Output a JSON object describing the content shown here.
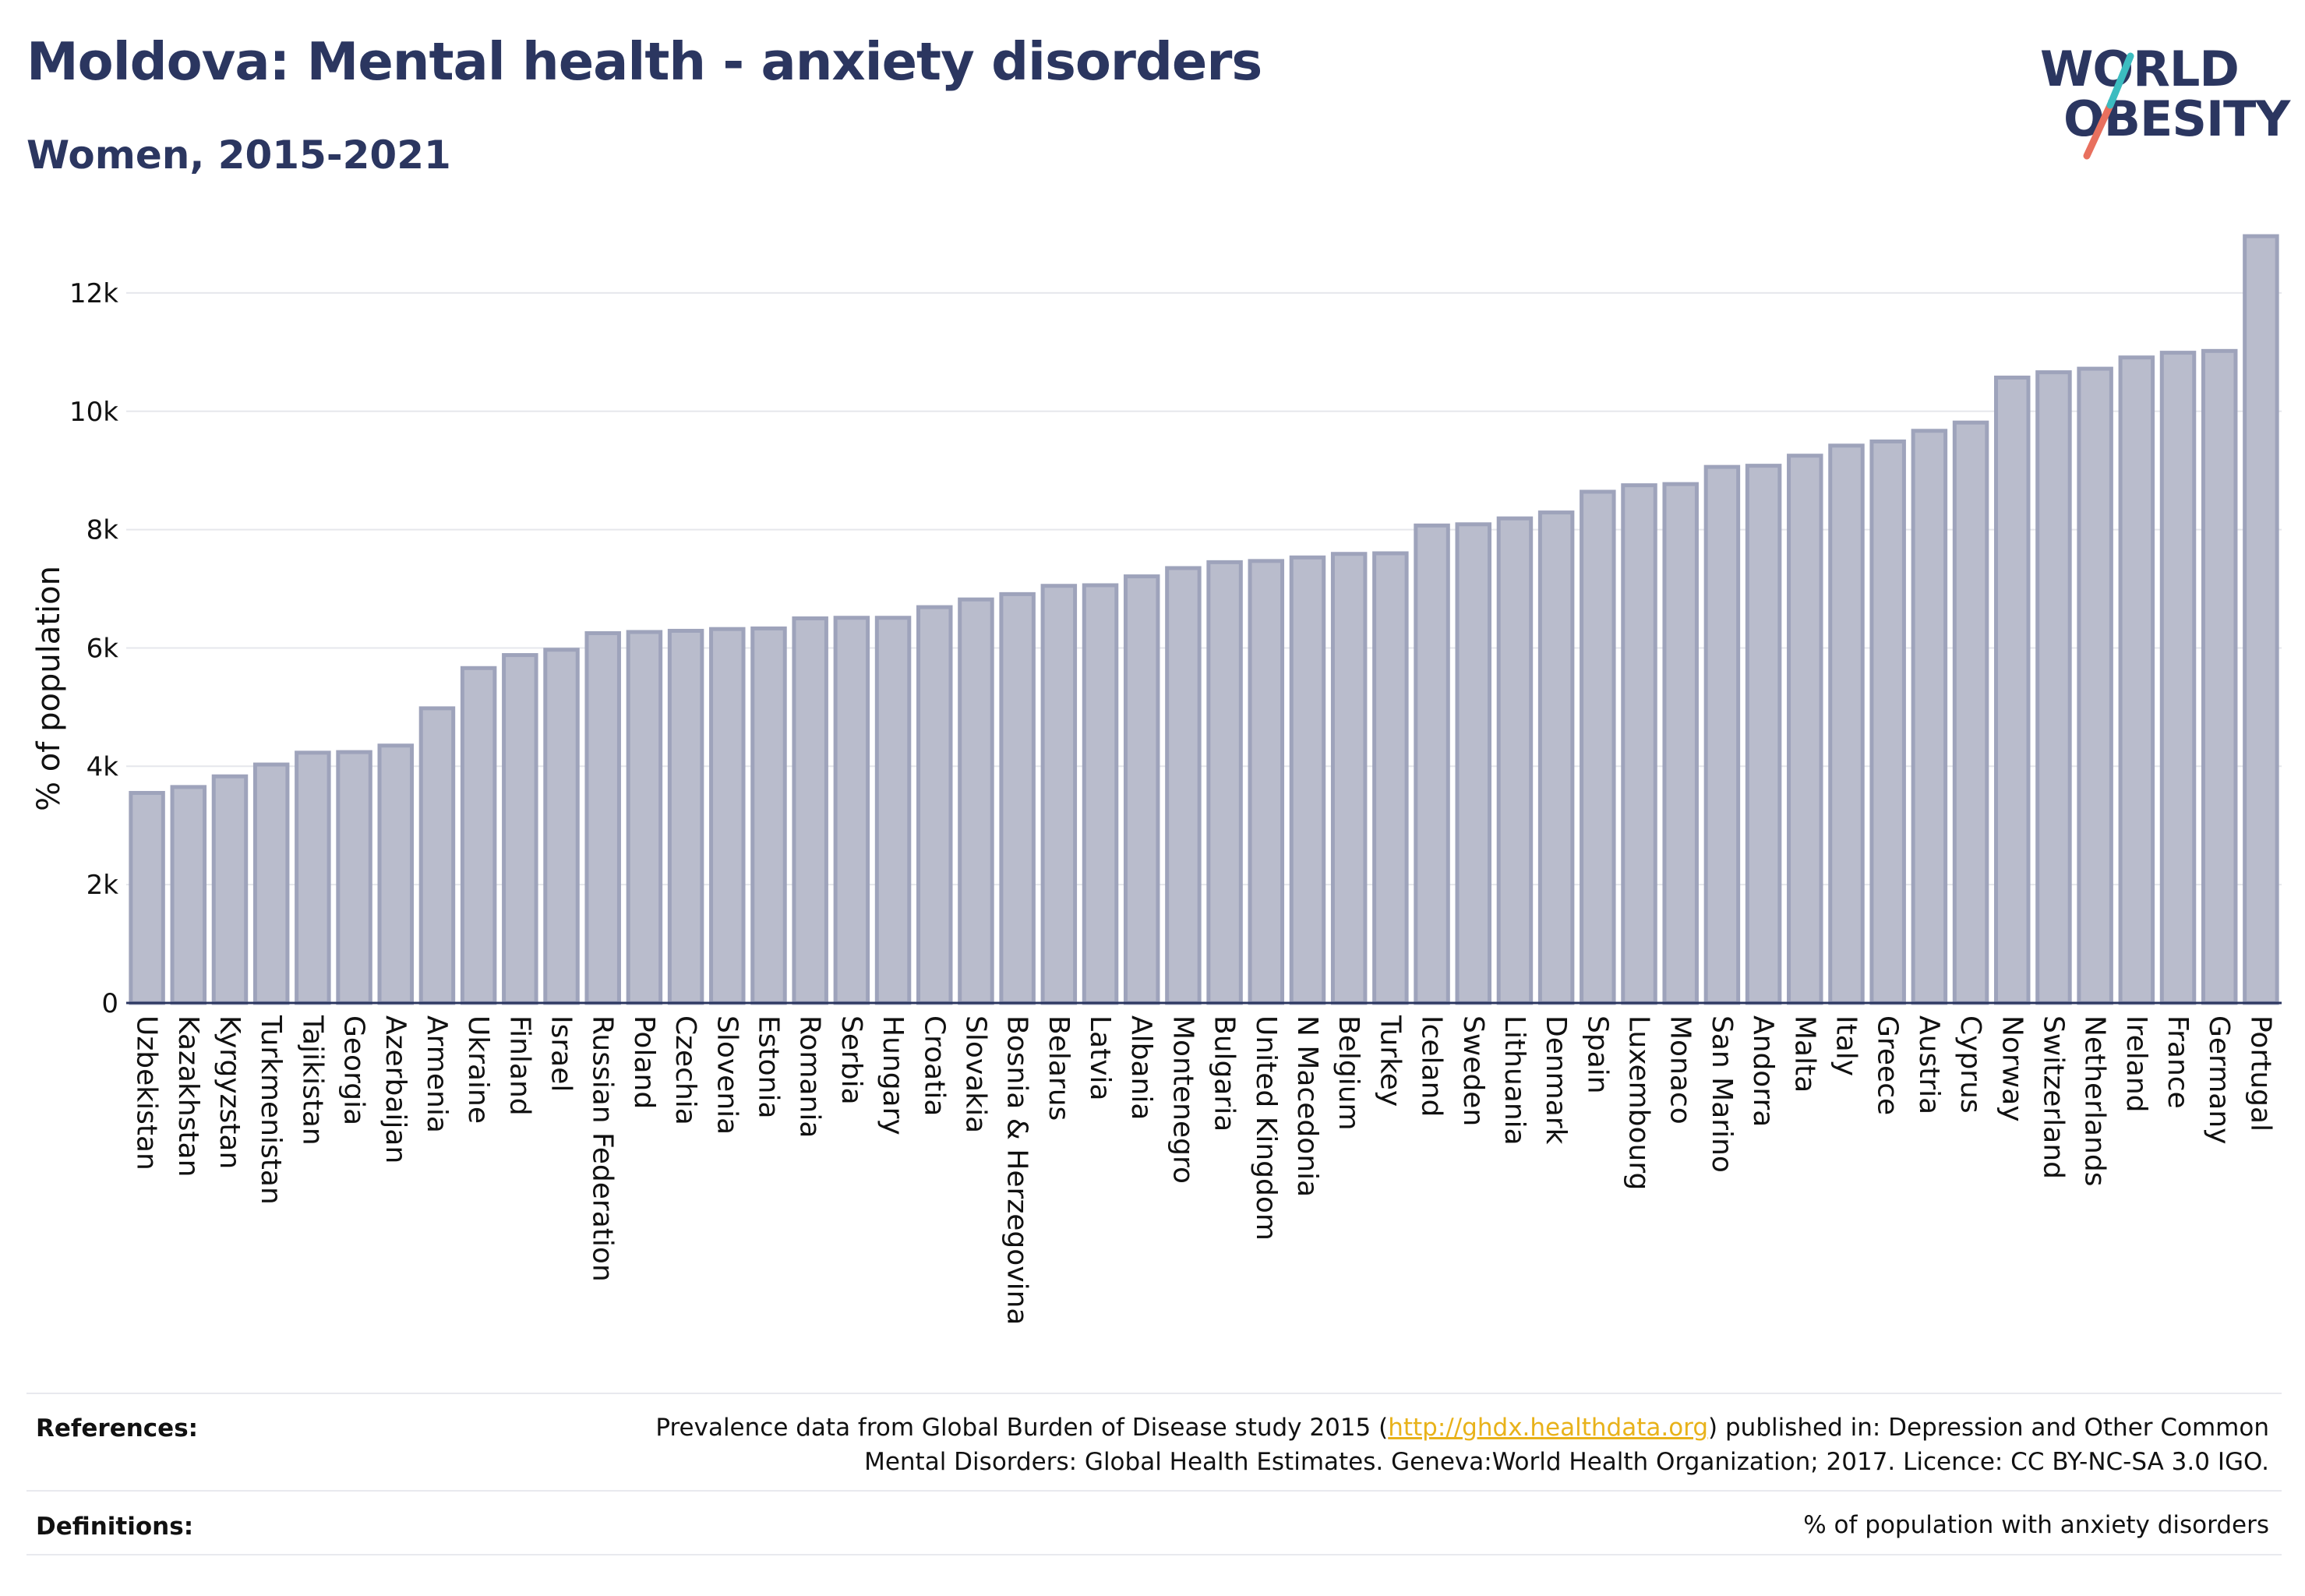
{
  "header": {
    "title": "Moldova: Mental health - anxiety disorders",
    "subtitle": "Women, 2015-2021"
  },
  "logo": {
    "line1": "WORLD",
    "line2": "OBESITY"
  },
  "chart_data": {
    "type": "bar",
    "title": "Moldova: Mental health - anxiety disorders",
    "subtitle": "Women, 2015-2021",
    "xlabel": "",
    "ylabel": "% of population",
    "ylim": [
      0,
      13000
    ],
    "yticks": [
      0,
      2000,
      4000,
      6000,
      8000,
      10000,
      12000
    ],
    "ytick_labels": [
      "0",
      "2k",
      "4k",
      "6k",
      "8k",
      "10k",
      "12k"
    ],
    "grid": true,
    "bar_color": "#b9bccc",
    "bar_edge_color": "#9ea3bb",
    "categories": [
      "Uzbekistan",
      "Kazakhstan",
      "Kyrgyzstan",
      "Turkmenistan",
      "Tajikistan",
      "Georgia",
      "Azerbaijan",
      "Armenia",
      "Ukraine",
      "Finland",
      "Israel",
      "Russian Federation",
      "Poland",
      "Czechia",
      "Slovenia",
      "Estonia",
      "Romania",
      "Serbia",
      "Hungary",
      "Croatia",
      "Slovakia",
      "Bosnia & Herzegovina",
      "Belarus",
      "Latvia",
      "Albania",
      "Montenegro",
      "Bulgaria",
      "United Kingdom",
      "N Macedonia",
      "Belgium",
      "Turkey",
      "Iceland",
      "Sweden",
      "Lithuania",
      "Denmark",
      "Spain",
      "Luxembourg",
      "Monaco",
      "San Marino",
      "Andorra",
      "Malta",
      "Italy",
      "Greece",
      "Austria",
      "Cyprus",
      "Norway",
      "Switzerland",
      "Netherlands",
      "Ireland",
      "France",
      "Germany",
      "Portugal"
    ],
    "values": [
      3550,
      3650,
      3830,
      4030,
      4230,
      4240,
      4350,
      4980,
      5660,
      5880,
      5970,
      6250,
      6270,
      6290,
      6320,
      6330,
      6500,
      6510,
      6510,
      6690,
      6820,
      6910,
      7050,
      7060,
      7210,
      7350,
      7450,
      7470,
      7530,
      7590,
      7600,
      8070,
      8090,
      8190,
      8290,
      8640,
      8750,
      8770,
      9060,
      9080,
      9250,
      9420,
      9490,
      9670,
      9810,
      10570,
      10660,
      10720,
      10910,
      10990,
      11020,
      12960
    ]
  },
  "footer": {
    "references_label": "References:",
    "references_line1_pre": "Prevalence data from Global Burden of Disease study 2015 (",
    "references_link": "http://ghdx.healthdata.org",
    "references_line1_post": ") published in: Depression and Other Common",
    "references_line2": "Mental Disorders: Global Health Estimates. Geneva:World Health Organization; 2017. Licence: CC BY-NC-SA 3.0 IGO.",
    "definitions_label": "Definitions:",
    "definitions_text": "% of population with anxiety disorders"
  }
}
